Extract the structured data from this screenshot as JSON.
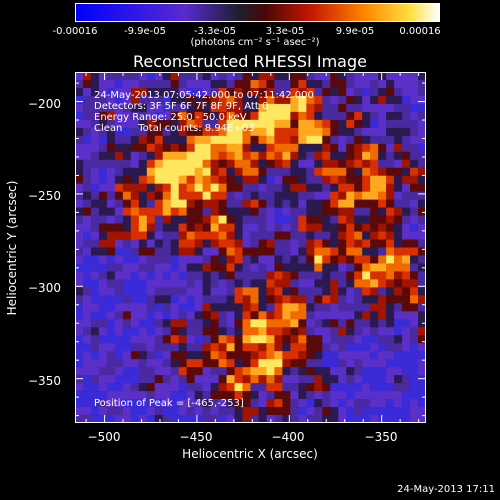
{
  "colorbar": {
    "ticks": [
      "-0.00016",
      "-9.9e-05",
      "-3.3e-05",
      "3.3e-05",
      "9.9e-05",
      "0.00016"
    ],
    "unit": "(photons cm⁻² s⁻¹ asec⁻²)"
  },
  "title": "Reconstructed RHESSI Image",
  "info": {
    "time": "24-May-2013 07:05:42.000 to 07:11:42.000",
    "detectors": "Detectors: 3F 5F 6F 7F 8F 9F, Att 0",
    "energy": "Energy Range: 25.0 - 50.0 keV",
    "clean": "Clean     Total counts: 8.94E+03"
  },
  "peak": "Position of Peak = [-465,-253]",
  "xlabel": "Heliocentric X (arcsec)",
  "ylabel": "Heliocentric Y (arcsec)",
  "stamp": "24-May-2013 17:11",
  "chart_data": {
    "type": "heatmap",
    "title": "Reconstructed RHESSI Image",
    "xlabel": "Heliocentric X (arcsec)",
    "ylabel": "Heliocentric Y (arcsec)",
    "xlim": [
      -516,
      -326
    ],
    "ylim": [
      -374,
      -184
    ],
    "xticks": [
      -500,
      -450,
      -400,
      -350
    ],
    "yticks": [
      -200,
      -250,
      -300,
      -350
    ],
    "xtick_labels": [
      "−500",
      "−450",
      "−400",
      "−350"
    ],
    "ytick_labels": [
      "−200",
      "−250",
      "−300",
      "−350"
    ],
    "colorbar_range": [
      -0.00016,
      0.00016
    ],
    "peak_position": [
      -465,
      -253
    ]
  }
}
